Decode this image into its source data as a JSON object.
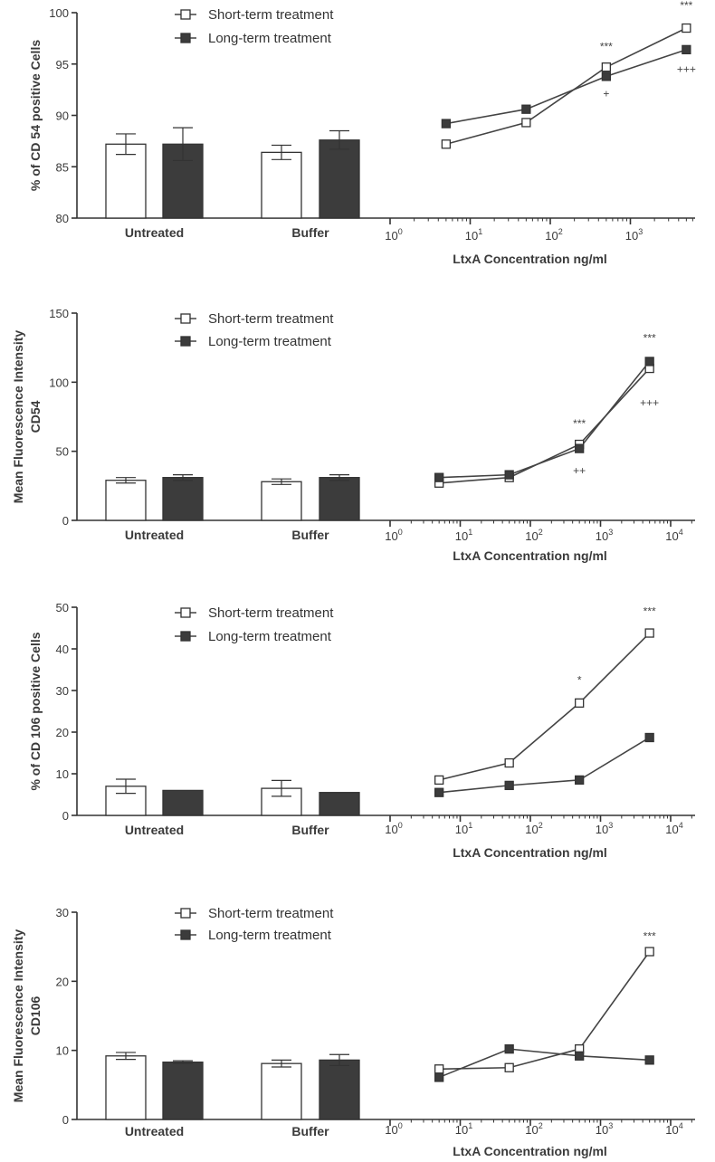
{
  "colors": {
    "axis": "#333333",
    "line": "#444444",
    "short_fill": "#ffffff",
    "long_fill": "#3c3c3c",
    "text": "#3a3a3a"
  },
  "chart_data": [
    {
      "type": "bar+line",
      "ylabel": "% of CD 54 positive Cells",
      "xlabel": "LtxA Concentration ng/ml",
      "ylim": [
        80,
        100
      ],
      "yticks": [
        "80",
        "85",
        "90",
        "95",
        "100"
      ],
      "xscale": "log",
      "log_ticks": [
        {
          "base": "10",
          "exp": "0"
        },
        {
          "base": "10",
          "exp": "1"
        },
        {
          "base": "10",
          "exp": "2"
        },
        {
          "base": "10",
          "exp": "3"
        }
      ],
      "legend": {
        "placement": "top-left",
        "entries": [
          "Short-term treatment",
          "Long-term treatment"
        ]
      },
      "bar_categories": [
        "Untreated",
        "Buffer"
      ],
      "bars": [
        {
          "category": "Untreated",
          "short": {
            "value": 87.2,
            "error": 1.0
          },
          "long": {
            "value": 87.2,
            "error": 1.6
          }
        },
        {
          "category": "Buffer",
          "short": {
            "value": 86.4,
            "error": 0.7
          },
          "long": {
            "value": 87.6,
            "error": 0.9
          }
        }
      ],
      "series": [
        {
          "name": "Short-term treatment",
          "marker": "open-square",
          "x": [
            5,
            50,
            500,
            5000
          ],
          "y": [
            87.2,
            89.3,
            94.7,
            98.5
          ]
        },
        {
          "name": "Long-term treatment",
          "marker": "filled-square",
          "x": [
            5,
            50,
            500,
            5000
          ],
          "y": [
            89.2,
            90.6,
            93.8,
            96.4
          ]
        }
      ],
      "annotations": [
        {
          "text": "***",
          "x": 500,
          "y": 96.7
        },
        {
          "text": "+",
          "x": 500,
          "y": 92.1
        },
        {
          "text": "***",
          "x": 5000,
          "y": 100.7
        },
        {
          "text": "+++",
          "x": 5000,
          "y": 94.5
        }
      ]
    },
    {
      "type": "bar+line",
      "ylabel": "Mean Fluorescence Intensity CD54",
      "xlabel": "LtxA Concentration ng/ml",
      "ylim": [
        0,
        150
      ],
      "yticks": [
        "0",
        "50",
        "100",
        "150"
      ],
      "xscale": "log",
      "log_ticks": [
        {
          "base": "10",
          "exp": "0"
        },
        {
          "base": "10",
          "exp": "1"
        },
        {
          "base": "10",
          "exp": "2"
        },
        {
          "base": "10",
          "exp": "3"
        },
        {
          "base": "10",
          "exp": "4"
        }
      ],
      "legend": {
        "placement": "top-left",
        "entries": [
          "Short-term treatment",
          "Long-term treatment"
        ]
      },
      "bar_categories": [
        "Untreated",
        "Buffer"
      ],
      "bars": [
        {
          "category": "Untreated",
          "short": {
            "value": 29,
            "error": 2
          },
          "long": {
            "value": 31,
            "error": 2
          }
        },
        {
          "category": "Buffer",
          "short": {
            "value": 28,
            "error": 2
          },
          "long": {
            "value": 31,
            "error": 2
          }
        }
      ],
      "series": [
        {
          "name": "Short-term treatment",
          "marker": "open-square",
          "x": [
            5,
            50,
            500,
            5000
          ],
          "y": [
            27,
            31,
            55,
            110
          ]
        },
        {
          "name": "Long-term treatment",
          "marker": "filled-square",
          "x": [
            5,
            50,
            500,
            5000
          ],
          "y": [
            31,
            33,
            52,
            115
          ]
        }
      ],
      "annotations": [
        {
          "text": "***",
          "x": 500,
          "y": 70
        },
        {
          "text": "++",
          "x": 500,
          "y": 36
        },
        {
          "text": "***",
          "x": 5000,
          "y": 132
        },
        {
          "text": "+++",
          "x": 5000,
          "y": 85
        }
      ]
    },
    {
      "type": "bar+line",
      "ylabel": "% of CD 106 positive Cells",
      "xlabel": "LtxA Concentration ng/ml",
      "ylim": [
        0,
        50
      ],
      "yticks": [
        "0",
        "10",
        "20",
        "30",
        "40",
        "50"
      ],
      "xscale": "log",
      "log_ticks": [
        {
          "base": "10",
          "exp": "0"
        },
        {
          "base": "10",
          "exp": "1"
        },
        {
          "base": "10",
          "exp": "2"
        },
        {
          "base": "10",
          "exp": "3"
        },
        {
          "base": "10",
          "exp": "4"
        }
      ],
      "legend": {
        "placement": "top-left",
        "entries": [
          "Short-term treatment",
          "Long-term treatment"
        ]
      },
      "bar_categories": [
        "Untreated",
        "Buffer"
      ],
      "bars": [
        {
          "category": "Untreated",
          "short": {
            "value": 7,
            "error": 1.7
          },
          "long": {
            "value": 6,
            "error": 0
          }
        },
        {
          "category": "Buffer",
          "short": {
            "value": 6.5,
            "error": 1.9
          },
          "long": {
            "value": 5.5,
            "error": 0
          }
        }
      ],
      "series": [
        {
          "name": "Short-term treatment",
          "marker": "open-square",
          "x": [
            5,
            50,
            500,
            5000
          ],
          "y": [
            8.5,
            12.6,
            27,
            43.8
          ]
        },
        {
          "name": "Long-term treatment",
          "marker": "filled-square",
          "x": [
            5,
            50,
            500,
            5000
          ],
          "y": [
            5.5,
            7.2,
            8.5,
            18.7
          ]
        }
      ],
      "annotations": [
        {
          "text": "*",
          "x": 500,
          "y": 32.5
        },
        {
          "text": "***",
          "x": 5000,
          "y": 49
        }
      ]
    },
    {
      "type": "bar+line",
      "ylabel": "Mean Fluorescence Intensity CD106",
      "xlabel": "LtxA Concentration ng/ml",
      "ylim": [
        0,
        30
      ],
      "yticks": [
        "0",
        "10",
        "20",
        "30"
      ],
      "xscale": "log",
      "log_ticks": [
        {
          "base": "10",
          "exp": "0"
        },
        {
          "base": "10",
          "exp": "1"
        },
        {
          "base": "10",
          "exp": "2"
        },
        {
          "base": "10",
          "exp": "3"
        },
        {
          "base": "10",
          "exp": "4"
        }
      ],
      "legend": {
        "placement": "top-left",
        "entries": [
          "Short-term treatment",
          "Long-term treatment"
        ]
      },
      "bar_categories": [
        "Untreated",
        "Buffer"
      ],
      "bars": [
        {
          "category": "Untreated",
          "short": {
            "value": 9.2,
            "error": 0.5
          },
          "long": {
            "value": 8.3,
            "error": 0.2
          }
        },
        {
          "category": "Buffer",
          "short": {
            "value": 8.1,
            "error": 0.5
          },
          "long": {
            "value": 8.6,
            "error": 0.8
          }
        }
      ],
      "series": [
        {
          "name": "Short-term treatment",
          "marker": "open-square",
          "x": [
            5,
            50,
            500,
            5000
          ],
          "y": [
            7.3,
            7.5,
            10.2,
            24.3
          ]
        },
        {
          "name": "Long-term treatment",
          "marker": "filled-square",
          "x": [
            5,
            50,
            500,
            5000
          ],
          "y": [
            6.1,
            10.2,
            9.2,
            8.6
          ]
        }
      ],
      "annotations": [
        {
          "text": "***",
          "x": 5000,
          "y": 26.5
        }
      ]
    }
  ]
}
